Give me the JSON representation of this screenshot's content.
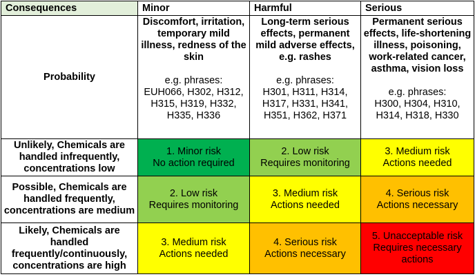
{
  "table": {
    "header": [
      "Consequences",
      "Minor",
      "Harmful",
      "Serious"
    ],
    "probability_label": "Probability",
    "descriptions": [
      {
        "effects": "Discomfort, irritation, temporary mild illness, redness of the skin",
        "phrases_label": "e.g. phrases:",
        "phrases": "EUH066, H302, H312, H315, H319, H332, H335, H336"
      },
      {
        "effects": "Long-term serious effects, permanent mild adverse effects, e.g. rashes",
        "phrases_label": "e.g. phrases:",
        "phrases": "H301, H311, H314, H317, H331, H341, H351, H362, H371"
      },
      {
        "effects": "Permanent serious effects, life-shortening illness, poisoning, work-related cancer, asthma, vision loss",
        "phrases_label": "e.g. phrases:",
        "phrases": "H300, H304, H310, H314, H318, H330"
      }
    ],
    "rows": [
      {
        "label": "Unlikely, Chemicals are handled infrequently, concentrations low",
        "cells": [
          {
            "level": "1. Minor risk",
            "action": "No action required",
            "color": "#00b050"
          },
          {
            "level": "2. Low risk",
            "action": "Requires monitoring",
            "color": "#92d050"
          },
          {
            "level": "3. Medium risk",
            "action": "Actions needed",
            "color": "#ffff00"
          }
        ]
      },
      {
        "label": "Possible, Chemicals are handled frequently, concentrations are medium",
        "cells": [
          {
            "level": "2. Low risk",
            "action": "Requires monitoring",
            "color": "#92d050"
          },
          {
            "level": "3. Medium risk",
            "action": "Actions needed",
            "color": "#ffff00"
          },
          {
            "level": "4. Serious risk",
            "action": "Actions necessary",
            "color": "#ffc000"
          }
        ]
      },
      {
        "label": "Likely, Chemicals are handled frequently/continuously, concentrations are high",
        "cells": [
          {
            "level": "3. Medium risk",
            "action": "Actions needed",
            "color": "#ffff00"
          },
          {
            "level": "4. Serious risk",
            "action": "Actions necessary",
            "color": "#ffc000"
          },
          {
            "level": "5. Unacceptable risk",
            "action": "Requires necessary actions",
            "color": "#ff0000"
          }
        ]
      }
    ]
  }
}
